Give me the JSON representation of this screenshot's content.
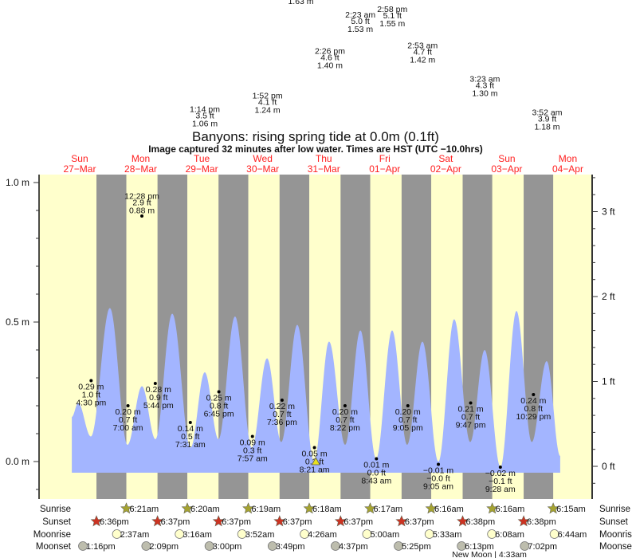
{
  "title": "Banyons: rising  spring tide at 0.0m (0.1ft)",
  "subtitle": "Image captured 32 minutes after low water. Times are HST (UTC −10.0hrs)",
  "colors": {
    "day": "#ffffcc",
    "night": "#959595",
    "water": "#a3b5ff",
    "day_label": "#ff2020",
    "sunrise_icon": "#a5a332",
    "sunset_icon": "#cc3322",
    "moonrise_icon": "#ffffcc",
    "moonset_icon": "#bdbdad",
    "now_marker": "#e8e020"
  },
  "days": [
    {
      "name": "Sun",
      "date": "27−Mar"
    },
    {
      "name": "Mon",
      "date": "28−Mar"
    },
    {
      "name": "Tue",
      "date": "29−Mar"
    },
    {
      "name": "Wed",
      "date": "30−Mar"
    },
    {
      "name": "Thu",
      "date": "31−Mar"
    },
    {
      "name": "Fri",
      "date": "01−Apr"
    },
    {
      "name": "Sat",
      "date": "02−Apr"
    },
    {
      "name": "Sun",
      "date": "03−Apr"
    },
    {
      "name": "Mon",
      "date": "04−Apr"
    }
  ],
  "chart_data": {
    "type": "area",
    "title": "Banyons: rising  spring tide at 0.0m (0.1ft)",
    "left_axis": {
      "unit": "m",
      "range": [
        -0.13,
        1.03
      ],
      "tick_labels": [
        "0.0 m",
        "0.5 m",
        "1.0 m"
      ],
      "tick_values": [
        0,
        0.5,
        1.0
      ],
      "minor_step": 0.1
    },
    "right_axis": {
      "unit": "ft",
      "tick_labels": [
        "0 ft",
        "1 ft",
        "2 ft",
        "3 ft"
      ],
      "tick_values": [
        0,
        1,
        2,
        3
      ],
      "minor_step": 0.2
    },
    "curve_extremes_m": [
      {
        "day": 0,
        "time": "8:54am",
        "m": 0.16
      },
      {
        "day": 0,
        "time": "11:24am",
        "m": 0.21
      },
      {
        "day": 0,
        "time": "4:24pm",
        "m": 0.09
      },
      {
        "day": 0,
        "time": "11:54pm",
        "m": 0.55
      },
      {
        "day": 1,
        "time": "6:48am",
        "m": 0.06
      },
      {
        "day": 1,
        "time": "12:30pm",
        "m": 0.27
      },
      {
        "day": 1,
        "time": "5:48pm",
        "m": 0.08
      },
      {
        "day": 2,
        "time": "12:24am",
        "m": 0.53
      },
      {
        "day": 2,
        "time": "7:36am",
        "m": 0.05
      },
      {
        "day": 2,
        "time": "1:12pm",
        "m": 0.32
      },
      {
        "day": 2,
        "time": "6:36pm",
        "m": 0.08
      },
      {
        "day": 3,
        "time": "1:06am",
        "m": 0.52
      },
      {
        "day": 3,
        "time": "7:42am",
        "m": 0.05
      },
      {
        "day": 3,
        "time": "1:42pm",
        "m": 0.37
      },
      {
        "day": 3,
        "time": "7:18pm",
        "m": 0.07
      },
      {
        "day": 4,
        "time": "1:36am",
        "m": 0.49
      },
      {
        "day": 4,
        "time": "8:12am",
        "m": 0.0
      },
      {
        "day": 4,
        "time": "2:06pm",
        "m": 0.43
      },
      {
        "day": 4,
        "time": "8:24pm",
        "m": 0.06
      },
      {
        "day": 5,
        "time": "2:24am",
        "m": 0.47
      },
      {
        "day": 5,
        "time": "8:36am",
        "m": 0.01
      },
      {
        "day": 5,
        "time": "2:54pm",
        "m": 0.47
      },
      {
        "day": 5,
        "time": "8:48pm",
        "m": 0.06
      },
      {
        "day": 6,
        "time": "2:48am",
        "m": 0.43
      },
      {
        "day": 6,
        "time": "9:06am",
        "m": 0.0
      },
      {
        "day": 6,
        "time": "3:18pm",
        "m": 0.51
      },
      {
        "day": 6,
        "time": "9:36pm",
        "m": 0.07
      },
      {
        "day": 7,
        "time": "3:18am",
        "m": 0.4
      },
      {
        "day": 7,
        "time": "9:30am",
        "m": -0.02
      },
      {
        "day": 7,
        "time": "3:48pm",
        "m": 0.54
      },
      {
        "day": 7,
        "time": "9:48pm",
        "m": 0.07
      },
      {
        "day": 8,
        "time": "3:42am",
        "m": 0.36
      },
      {
        "day": 8,
        "time": "9:00am",
        "m": 0.02
      }
    ],
    "highs": [
      {
        "day": 1,
        "time": "12:28 pm",
        "ft": "2.9 ft",
        "m_label": "0.88 m",
        "m": 0.88
      },
      {
        "day": 2,
        "time": "1:14 pm",
        "ft": "3.5 ft",
        "m_label": "1.06 m",
        "m": 1.06
      },
      {
        "day": 3,
        "time": "1:52 pm",
        "ft": "4.1 ft",
        "m_label": "1.24 m",
        "m": 1.24
      },
      {
        "day": 4,
        "time": "",
        "ft": "",
        "m_label": "1.63 m",
        "m": 1.63
      },
      {
        "day": 4,
        "time": "2:26 pm",
        "ft": "4.6 ft",
        "m_label": "1.40 m",
        "m": 1.4
      },
      {
        "day": 5,
        "time": "2:23 am",
        "ft": "5.0 ft",
        "m_label": "1.53 m",
        "m": 1.53
      },
      {
        "day": 5,
        "time": "2:58 pm",
        "ft": "5.1 ft",
        "m_label": "1.55 m",
        "m": 1.55
      },
      {
        "day": 6,
        "time": "2:53 am",
        "ft": "4.7 ft",
        "m_label": "1.42 m",
        "m": 1.42
      },
      {
        "day": 7,
        "time": "3:23 am",
        "ft": "4.3 ft",
        "m_label": "1.30 m",
        "m": 1.3
      },
      {
        "day": 8,
        "time": "3:52 am",
        "ft": "3.9 ft",
        "m_label": "1.18 m",
        "m": 1.18
      }
    ],
    "lows": [
      {
        "day": 0,
        "time": "4:30 pm",
        "ft": "1.0 ft",
        "m_label": "0.29 m",
        "m": 0.29
      },
      {
        "day": 1,
        "time": "7:00 am",
        "ft": "0.7 ft",
        "m_label": "0.20 m",
        "m": 0.2
      },
      {
        "day": 1,
        "time": "5:44 pm",
        "ft": "0.9 ft",
        "m_label": "0.28 m",
        "m": 0.28
      },
      {
        "day": 2,
        "time": "7:31 am",
        "ft": "0.5 ft",
        "m_label": "0.14 m",
        "m": 0.14
      },
      {
        "day": 2,
        "time": "6:45 pm",
        "ft": "0.8 ft",
        "m_label": "0.25 m",
        "m": 0.25
      },
      {
        "day": 3,
        "time": "7:57 am",
        "ft": "0.3 ft",
        "m_label": "0.09 m",
        "m": 0.09
      },
      {
        "day": 3,
        "time": "7:36 pm",
        "ft": "0.7 ft",
        "m_label": "0.22 m",
        "m": 0.22
      },
      {
        "day": 4,
        "time": "8:21 am",
        "ft": "0.2 ft",
        "m_label": "0.05 m",
        "m": 0.05
      },
      {
        "day": 4,
        "time": "8:22 pm",
        "ft": "0.7 ft",
        "m_label": "0.20 m",
        "m": 0.2
      },
      {
        "day": 5,
        "time": "8:43 am",
        "ft": "0.0 ft",
        "m_label": "0.01 m",
        "m": 0.01
      },
      {
        "day": 5,
        "time": "9:05 pm",
        "ft": "0.7 ft",
        "m_label": "0.20 m",
        "m": 0.2
      },
      {
        "day": 6,
        "time": "9:05 am",
        "ft": "−0.0 ft",
        "m_label": "−0.01 m",
        "m": -0.01
      },
      {
        "day": 6,
        "time": "9:47 pm",
        "ft": "0.7 ft",
        "m_label": "0.21 m",
        "m": 0.21
      },
      {
        "day": 7,
        "time": "9:28 am",
        "ft": "−0.1 ft",
        "m_label": "−0.02 m",
        "m": -0.02
      },
      {
        "day": 7,
        "time": "10:29 pm",
        "ft": "0.8 ft",
        "m_label": "0.24 m",
        "m": 0.24
      }
    ],
    "now_marker": {
      "day": 4,
      "time": "8:53am",
      "m": 0.0
    }
  },
  "rows": {
    "sunrise": {
      "label": "Sunrise",
      "icon": "sun-star-icon",
      "events": [
        {
          "day": 1,
          "time": "6:21am"
        },
        {
          "day": 2,
          "time": "6:20am"
        },
        {
          "day": 3,
          "time": "6:19am"
        },
        {
          "day": 4,
          "time": "6:18am"
        },
        {
          "day": 5,
          "time": "6:17am"
        },
        {
          "day": 6,
          "time": "6:16am"
        },
        {
          "day": 7,
          "time": "6:16am"
        },
        {
          "day": 8,
          "time": "6:15am"
        }
      ]
    },
    "sunset": {
      "label": "Sunset",
      "icon": "sunset-star-icon",
      "events": [
        {
          "day": 0,
          "time": "6:36pm"
        },
        {
          "day": 1,
          "time": "6:37pm"
        },
        {
          "day": 2,
          "time": "6:37pm"
        },
        {
          "day": 3,
          "time": "6:37pm"
        },
        {
          "day": 4,
          "time": "6:37pm"
        },
        {
          "day": 5,
          "time": "6:37pm"
        },
        {
          "day": 6,
          "time": "6:38pm"
        },
        {
          "day": 7,
          "time": "6:38pm"
        }
      ]
    },
    "moonrise": {
      "label": "Moonrise",
      "icon": "moon-circle-icon",
      "events": [
        {
          "day": 1,
          "time": "2:37am"
        },
        {
          "day": 2,
          "time": "3:16am"
        },
        {
          "day": 3,
          "time": "3:52am"
        },
        {
          "day": 4,
          "time": "4:26am"
        },
        {
          "day": 5,
          "time": "5:00am"
        },
        {
          "day": 6,
          "time": "5:33am"
        },
        {
          "day": 7,
          "time": "6:08am"
        },
        {
          "day": 8,
          "time": "6:44am"
        }
      ]
    },
    "moonset": {
      "label": "Moonset",
      "icon": "moon-circle-icon",
      "events": [
        {
          "day": 0,
          "time": "1:16pm"
        },
        {
          "day": 1,
          "time": "2:09pm"
        },
        {
          "day": 2,
          "time": "3:00pm"
        },
        {
          "day": 3,
          "time": "3:49pm"
        },
        {
          "day": 4,
          "time": "4:37pm"
        },
        {
          "day": 5,
          "time": "5:25pm"
        },
        {
          "day": 6,
          "time": "6:13pm"
        },
        {
          "day": 7,
          "time": "7:02pm"
        }
      ]
    }
  },
  "moon_phase": "New Moon | 4:33am"
}
